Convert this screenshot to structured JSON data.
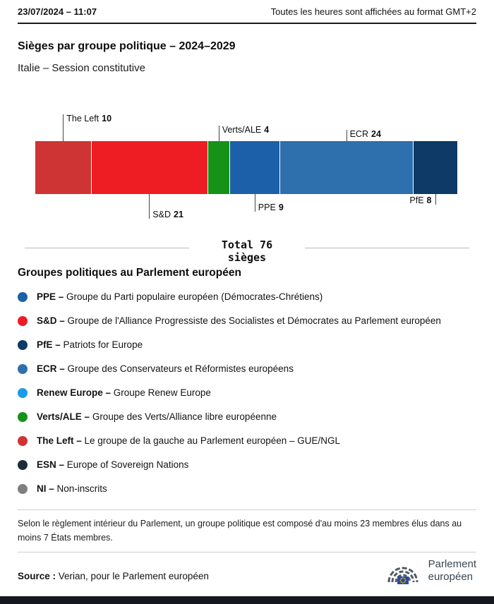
{
  "header": {
    "datetime": "23/07/2024 – 11:07",
    "timezone_note": "Toutes les heures sont affichées au format GMT+2"
  },
  "title": "Sièges par groupe politique – 2024–2029",
  "subtitle": "Italie – Session constitutive",
  "chart_data": {
    "type": "bar",
    "subtype": "horizontal-stacked",
    "title": "Sièges par groupe politique – 2024–2029",
    "subtitle": "Italie – Session constitutive",
    "total": 76,
    "unit": "sièges",
    "total_label_line1": "Total 76",
    "total_label_line2": "sièges",
    "series": [
      {
        "name": "The Left",
        "seats": 10,
        "color": "#cf3434",
        "label_side": "top",
        "line_len": 38,
        "text_side": "right"
      },
      {
        "name": "S&D",
        "seats": 21,
        "color": "#ee1c23",
        "label_side": "bottom",
        "line_len": 35,
        "text_side": "right"
      },
      {
        "name": "Verts/ALE",
        "seats": 4,
        "color": "#169216",
        "label_side": "top",
        "line_len": 22,
        "text_side": "right"
      },
      {
        "name": "PPE",
        "seats": 9,
        "color": "#1b60a8",
        "label_side": "bottom",
        "line_len": 25,
        "text_side": "right"
      },
      {
        "name": "ECR",
        "seats": 24,
        "color": "#2e6fad",
        "label_side": "top",
        "line_len": 16,
        "text_side": "right"
      },
      {
        "name": "PfE",
        "seats": 8,
        "color": "#0d3a66",
        "label_side": "bottom",
        "line_len": 15,
        "text_side": "left"
      }
    ]
  },
  "legend": {
    "heading": "Groupes politiques au Parlement européen",
    "items": [
      {
        "name": "PPE –",
        "desc": "Groupe du Parti populaire européen (Démocrates-Chrétiens)",
        "color": "#1b60a8"
      },
      {
        "name": "S&D –",
        "desc": "Groupe de l'Alliance Progressiste des Socialistes et Démocrates au Parlement européen",
        "color": "#ee1c23"
      },
      {
        "name": "PfE –",
        "desc": "Patriots for Europe",
        "color": "#0d3a66"
      },
      {
        "name": "ECR –",
        "desc": "Groupe des Conservateurs et Réformistes européens",
        "color": "#2e6fad"
      },
      {
        "name": "Renew Europe –",
        "desc": "Groupe Renew Europe",
        "color": "#1a9ce8"
      },
      {
        "name": "Verts/ALE –",
        "desc": "Groupe des Verts/Alliance libre européenne",
        "color": "#169216"
      },
      {
        "name": "The Left –",
        "desc": "Le groupe de la gauche au Parlement européen – GUE/NGL",
        "color": "#cf3434"
      },
      {
        "name": "ESN –",
        "desc": "Europe of Sovereign Nations",
        "color": "#1e2b3c"
      },
      {
        "name": "NI –",
        "desc": "Non-inscrits",
        "color": "#7f7f7f"
      }
    ]
  },
  "footnote": "Selon le règlement intérieur du Parlement, un groupe politique est composé d'au moins 23 membres élus dans au moins 7 États membres.",
  "source": {
    "label": "Source :",
    "text": "Verian, pour le Parlement européen"
  },
  "logo": {
    "line1": "Parlement",
    "line2": "européen"
  }
}
